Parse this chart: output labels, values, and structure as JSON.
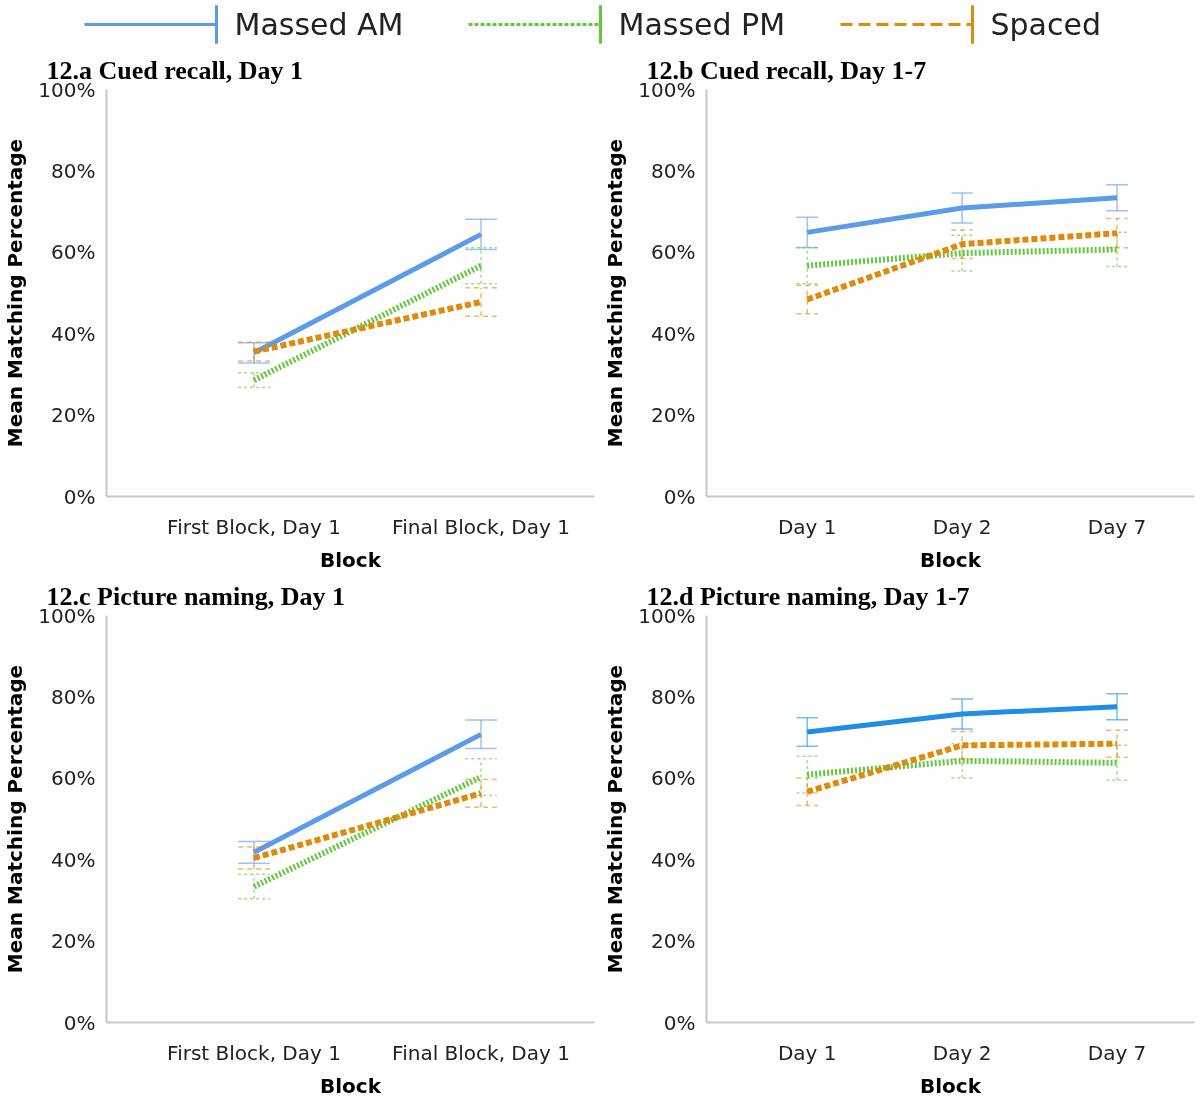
{
  "chart_data": [
    {
      "type": "line",
      "title": "12.a Cued recall, Day 1",
      "xlabel": "Block",
      "ylabel": "Mean Matching Percentage",
      "categories": [
        "First Block, Day 1",
        "Final Block, Day 1"
      ],
      "ylim": [
        0,
        100
      ],
      "yticks": [
        {
          "value": 0,
          "label": "0%"
        },
        {
          "value": 20,
          "label": "20%"
        },
        {
          "value": 40,
          "label": "40%"
        },
        {
          "value": 60,
          "label": "60%"
        },
        {
          "value": 80,
          "label": "80%"
        },
        {
          "value": 100,
          "label": "100%"
        }
      ],
      "grid": false,
      "legend": "top",
      "marker": "none",
      "series": [
        {
          "name": "Massed AM",
          "color": "#5b9be8",
          "line_style": "solid",
          "values": [
            35.3,
            64.4
          ],
          "errors": [
            2.5,
            3.7
          ]
        },
        {
          "name": "Massed PM",
          "color": "#5ec93c",
          "line_style": "dotted",
          "values": [
            28.6,
            56.7
          ],
          "errors": [
            1.8,
            4.4
          ]
        },
        {
          "name": "Spaced",
          "color": "#e08a0b",
          "line_style": "dashed",
          "values": [
            35.6,
            47.8
          ],
          "errors": [
            2.3,
            3.5
          ]
        }
      ]
    },
    {
      "type": "line",
      "title": "12.b Cued recall, Day 1-7",
      "xlabel": "Block",
      "ylabel": "Mean Matching Percentage",
      "categories": [
        "Day 1",
        "Day 2",
        "Day 7"
      ],
      "ylim": [
        0,
        100
      ],
      "yticks": [
        {
          "value": 0,
          "label": "0%"
        },
        {
          "value": 20,
          "label": "20%"
        },
        {
          "value": 40,
          "label": "40%"
        },
        {
          "value": 60,
          "label": "60%"
        },
        {
          "value": 80,
          "label": "80%"
        },
        {
          "value": 100,
          "label": "100%"
        }
      ],
      "grid": false,
      "marker": "none",
      "series": [
        {
          "color": "#5b9be8",
          "line_style": "solid",
          "values": [
            64.9,
            70.9,
            73.4
          ],
          "errors": [
            3.7,
            3.7,
            3.2
          ]
        },
        {
          "color": "#5ec93c",
          "line_style": "dotted",
          "values": [
            56.7,
            59.8,
            60.7
          ],
          "errors": [
            4.4,
            4.4,
            4.2
          ]
        },
        {
          "color": "#e08a0b",
          "line_style": "dashed",
          "values": [
            48.4,
            62.0,
            64.7
          ],
          "errors": [
            3.5,
            3.5,
            3.6
          ]
        }
      ]
    },
    {
      "type": "line",
      "title": "12.c Picture naming, Day 1",
      "xlabel": "Block",
      "ylabel": "Mean Matching Percentage",
      "categories": [
        "First Block, Day 1",
        "Final Block, Day 1"
      ],
      "ylim": [
        0,
        100
      ],
      "yticks": [
        {
          "value": 0,
          "label": "0%"
        },
        {
          "value": 20,
          "label": "20%"
        },
        {
          "value": 40,
          "label": "40%"
        },
        {
          "value": 60,
          "label": "60%"
        },
        {
          "value": 80,
          "label": "80%"
        },
        {
          "value": 100,
          "label": "100%"
        }
      ],
      "grid": false,
      "marker": "none",
      "series": [
        {
          "color": "#5b9be8",
          "line_style": "solid",
          "values": [
            41.8,
            70.8
          ],
          "errors": [
            2.7,
            3.5
          ]
        },
        {
          "color": "#5ec93c",
          "line_style": "dotted",
          "values": [
            33.4,
            60.3
          ],
          "errors": [
            3.0,
            4.5
          ]
        },
        {
          "color": "#e08a0b",
          "line_style": "dashed",
          "values": [
            40.4,
            56.3
          ],
          "errors": [
            2.7,
            3.4
          ]
        }
      ]
    },
    {
      "type": "line",
      "title": "12.d Picture naming, Day 1-7",
      "xlabel": "Block",
      "ylabel": "Mean Matching Percentage",
      "categories": [
        "Day 1",
        "Day 2",
        "Day 7"
      ],
      "ylim": [
        0,
        100
      ],
      "yticks": [
        {
          "value": 0,
          "label": "0%"
        },
        {
          "value": 20,
          "label": "20%"
        },
        {
          "value": 40,
          "label": "40%"
        },
        {
          "value": 60,
          "label": "60%"
        },
        {
          "value": 80,
          "label": "80%"
        },
        {
          "value": 100,
          "label": "100%"
        }
      ],
      "grid": false,
      "marker": "none",
      "series": [
        {
          "color": "#1f8fe6",
          "line_style": "solid",
          "values": [
            71.4,
            75.8,
            77.6
          ],
          "errors": [
            3.5,
            3.7,
            3.2
          ]
        },
        {
          "color": "#5ec93c",
          "line_style": "dotted",
          "values": [
            60.9,
            64.3,
            63.8
          ],
          "errors": [
            4.5,
            4.2,
            4.3
          ]
        },
        {
          "color": "#e08a0b",
          "line_style": "dashed",
          "values": [
            56.7,
            68.1,
            68.5
          ],
          "errors": [
            3.4,
            3.4,
            3.3
          ]
        }
      ]
    }
  ]
}
